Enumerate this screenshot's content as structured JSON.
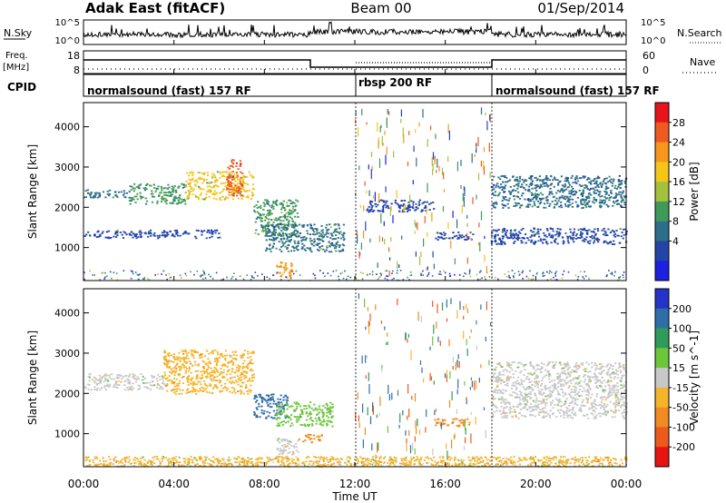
{
  "header": {
    "radar": "Adak East (fitACF)",
    "beam": "Beam 00",
    "date": "01/Sep/2014"
  },
  "top_panels": {
    "nsky_label": "N.Sky",
    "nsky_ticks": [
      "10^5",
      "10^0"
    ],
    "nsearch_label": "N.Search",
    "nsearch_ticks": [
      "10^5",
      "10^0"
    ],
    "freq_label": "Freq.",
    "freq_unit": "[MHz]",
    "freq_ticks": [
      "18",
      "8"
    ],
    "nave_label": "Nave",
    "nave_ticks": [
      "60",
      "0"
    ],
    "cpid_label": "CPID",
    "cpid_segments": [
      {
        "label": "normalsound (fast) 157 RF",
        "start_hour": 0,
        "end_hour": 12
      },
      {
        "label": "rbsp 200 RF",
        "start_hour": 12,
        "end_hour": 18
      },
      {
        "label": "normalsound (fast) 157 RF",
        "start_hour": 18,
        "end_hour": 24
      }
    ]
  },
  "axes": {
    "y_label": "Slant Range [km]",
    "y_ticks": [
      "4000",
      "3000",
      "2000",
      "1000"
    ],
    "x_label": "Time UT",
    "x_ticks": [
      "00:00",
      "04:00",
      "08:00",
      "12:00",
      "16:00",
      "20:00",
      "00:00"
    ]
  },
  "colorbars": {
    "power": {
      "label": "Power [dB]",
      "ticks": [
        "28",
        "24",
        "20",
        "16",
        "12",
        "8",
        "4"
      ],
      "colors": [
        "#e8141c",
        "#ef5a1e",
        "#f7951d",
        "#f5c518",
        "#a5c03c",
        "#3f9a5a",
        "#2d6f88",
        "#2445a8",
        "#1c20e0"
      ]
    },
    "velocity": {
      "label": "Velocity [m s^-1]",
      "ticks": [
        "200",
        "100",
        "50",
        "15",
        "-15",
        "-50",
        "-100",
        "-200"
      ],
      "colors": [
        "#2633c8",
        "#2e6fa8",
        "#2f9b5b",
        "#6cc63a",
        "#c8c8c8",
        "#f5b52a",
        "#f08a22",
        "#ec5a1d",
        "#e81414"
      ]
    }
  },
  "chart_data": [
    {
      "type": "heatmap",
      "name": "Power [dB]",
      "x_unit": "hour UT",
      "y_unit": "km",
      "xlim": [
        0,
        24
      ],
      "ylim": [
        180,
        4600
      ],
      "regions": [
        {
          "x": [
            0.0,
            2.0
          ],
          "y": [
            2250,
            2450
          ],
          "value": 10
        },
        {
          "x": [
            2.0,
            4.5
          ],
          "y": [
            2100,
            2600
          ],
          "value": 12
        },
        {
          "x": [
            4.5,
            7.5
          ],
          "y": [
            2200,
            2900
          ],
          "value": 18
        },
        {
          "x": [
            6.3,
            7.0
          ],
          "y": [
            2300,
            3200
          ],
          "value": 26
        },
        {
          "x": [
            7.5,
            9.5
          ],
          "y": [
            1300,
            2200
          ],
          "value": 12
        },
        {
          "x": [
            8.0,
            11.5
          ],
          "y": [
            900,
            1600
          ],
          "value": 10
        },
        {
          "x": [
            8.5,
            9.2
          ],
          "y": [
            250,
            700
          ],
          "value": 22
        },
        {
          "x": [
            0.0,
            6.0
          ],
          "y": [
            1250,
            1450
          ],
          "value": 6
        },
        {
          "x": [
            12.5,
            15.5
          ],
          "y": [
            1900,
            2200
          ],
          "value": 6
        },
        {
          "x": [
            15.5,
            17.2
          ],
          "y": [
            1200,
            1400
          ],
          "value": 6
        },
        {
          "x": [
            18.0,
            24.0
          ],
          "y": [
            2000,
            2800
          ],
          "value": 8
        },
        {
          "x": [
            18.0,
            24.0
          ],
          "y": [
            1100,
            1500
          ],
          "value": 6
        }
      ]
    },
    {
      "type": "heatmap",
      "name": "Velocity [m s^-1]",
      "x_unit": "hour UT",
      "y_unit": "km",
      "xlim": [
        0,
        24
      ],
      "ylim": [
        180,
        4600
      ],
      "regions": [
        {
          "x": [
            0.0,
            3.5
          ],
          "y": [
            2100,
            2500
          ],
          "value": -5
        },
        {
          "x": [
            3.5,
            7.5
          ],
          "y": [
            2000,
            3100
          ],
          "value": -40
        },
        {
          "x": [
            7.5,
            9.0
          ],
          "y": [
            1400,
            2000
          ],
          "value": 150
        },
        {
          "x": [
            8.5,
            11.0
          ],
          "y": [
            1200,
            1800
          ],
          "value": 30
        },
        {
          "x": [
            9.5,
            10.5
          ],
          "y": [
            800,
            1000
          ],
          "value": -60
        },
        {
          "x": [
            8.5,
            9.5
          ],
          "y": [
            500,
            900
          ],
          "value": 0
        },
        {
          "x": [
            15.5,
            17.2
          ],
          "y": [
            1200,
            1400
          ],
          "value": -60
        },
        {
          "x": [
            18.0,
            24.0
          ],
          "y": [
            1400,
            2800
          ],
          "value": 0
        },
        {
          "x": [
            0.0,
            24.0
          ],
          "y": [
            200,
            450
          ],
          "value": -30
        }
      ]
    }
  ]
}
